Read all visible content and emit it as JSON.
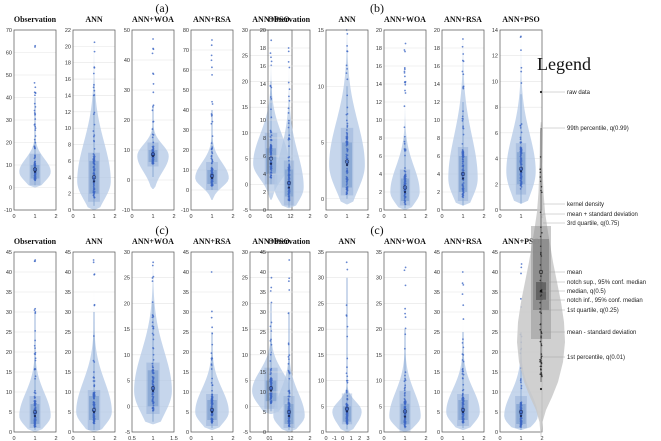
{
  "chart_data": {
    "type": "violin",
    "groups": [
      {
        "label": "(a)",
        "panels": [
          {
            "title": "Observation",
            "ylim": [
              -10,
              70
            ],
            "yticks": [
              -10,
              0,
              10,
              20,
              30,
              40,
              50,
              60,
              70
            ],
            "xticks": [
              "0",
              "1",
              "2"
            ],
            "xlim": [
              0,
              2
            ],
            "median": 7,
            "q1": 4,
            "q3": 10,
            "mean": 8,
            "sd": 7,
            "p1": 1,
            "p99": 40,
            "max": 63,
            "min": 0,
            "width": 0.75
          },
          {
            "title": "ANN",
            "ylim": [
              0,
              22
            ],
            "yticks": [
              0,
              2,
              4,
              6,
              8,
              10,
              12,
              14,
              16,
              18,
              20,
              22
            ],
            "xticks": [
              "0",
              "1",
              "2"
            ],
            "xlim": [
              0,
              2
            ],
            "median": 3.5,
            "q1": 2,
            "q3": 6,
            "mean": 4,
            "sd": 3,
            "p1": 0.5,
            "p99": 14,
            "max": 20.5,
            "min": 0,
            "width": 0.8
          },
          {
            "title": "ANN+WOA",
            "ylim": [
              -10,
              50
            ],
            "yticks": [
              -10,
              0,
              10,
              20,
              30,
              40,
              50
            ],
            "xticks": [
              "0",
              "1",
              "2"
            ],
            "xlim": [
              0,
              2
            ],
            "median": 8,
            "q1": 6,
            "q3": 10,
            "mean": 8.5,
            "sd": 4,
            "p1": 1,
            "p99": 25,
            "max": 47,
            "min": -3,
            "width": 0.75
          },
          {
            "title": "ANN+RSA",
            "ylim": [
              -10,
              80
            ],
            "yticks": [
              -10,
              0,
              10,
              20,
              30,
              40,
              50,
              60,
              70,
              80
            ],
            "xticks": [
              "0",
              "1",
              "2"
            ],
            "xlim": [
              0,
              2
            ],
            "median": 6,
            "q1": 3,
            "q3": 10,
            "mean": 7,
            "sd": 7,
            "p1": 0,
            "p99": 40,
            "max": 75,
            "min": -5,
            "width": 0.8
          },
          {
            "title": "ANN+PSO",
            "ylim": [
              -5,
              30
            ],
            "yticks": [
              -5,
              0,
              5,
              10,
              15,
              20,
              25,
              30
            ],
            "xticks": [
              "0",
              "1",
              "2"
            ],
            "xlim": [
              0,
              2
            ],
            "median": 4,
            "q1": 2,
            "q3": 7,
            "mean": 5,
            "sd": 5,
            "p1": 0,
            "p99": 20,
            "max": 28,
            "min": -3,
            "width": 0.85
          }
        ]
      },
      {
        "label": "(b)",
        "panels": [
          {
            "title": "Observation",
            "ylim": [
              0,
              20
            ],
            "yticks": [
              0,
              2,
              4,
              6,
              8,
              10,
              12,
              14,
              16,
              18,
              20
            ],
            "xticks": [
              "0",
              "1",
              "2"
            ],
            "xlim": [
              0,
              2
            ],
            "median": 2.5,
            "q1": 1.5,
            "q3": 4.5,
            "mean": 3,
            "sd": 2.5,
            "p1": 0.3,
            "p99": 10,
            "max": 18,
            "min": 0.2,
            "width": 0.7
          },
          {
            "title": "ANN",
            "ylim": [
              -1,
              15
            ],
            "yticks": [
              0,
              5,
              10,
              15
            ],
            "xticks": [
              "0",
              "1",
              "2"
            ],
            "xlim": [
              0,
              2
            ],
            "median": 3,
            "q1": 1,
            "q3": 5,
            "mean": 3.3,
            "sd": 3,
            "p1": 0,
            "p99": 10,
            "max": 15,
            "min": -0.5,
            "width": 0.85
          },
          {
            "title": "ANN+WOA",
            "ylim": [
              0,
              20
            ],
            "yticks": [
              0,
              2,
              4,
              6,
              8,
              10,
              12,
              14,
              16,
              18,
              20
            ],
            "xticks": [
              "0",
              "1",
              "2"
            ],
            "xlim": [
              0,
              2
            ],
            "median": 2,
            "q1": 1,
            "q3": 3.5,
            "mean": 2.5,
            "sd": 2,
            "p1": 0.2,
            "p99": 8,
            "max": 18.5,
            "min": 0,
            "width": 0.7
          },
          {
            "title": "ANN+RSA",
            "ylim": [
              0,
              20
            ],
            "yticks": [
              0,
              2,
              4,
              6,
              8,
              10,
              12,
              14,
              16,
              18,
              20
            ],
            "xticks": [
              "0",
              "1",
              "2"
            ],
            "xlim": [
              0,
              2
            ],
            "median": 3.5,
            "q1": 2,
            "q3": 6,
            "mean": 4,
            "sd": 3,
            "p1": 0.5,
            "p99": 12,
            "max": 19,
            "min": 0.5,
            "width": 0.7
          },
          {
            "title": "ANN+PSO",
            "ylim": [
              0,
              14
            ],
            "yticks": [
              0,
              2,
              4,
              6,
              8,
              10,
              12,
              14
            ],
            "xticks": [
              "0",
              "1",
              "2"
            ],
            "xlim": [
              0,
              2
            ],
            "median": 3,
            "q1": 2,
            "q3": 4.5,
            "mean": 3.2,
            "sd": 2,
            "p1": 0.5,
            "p99": 9,
            "max": 13.5,
            "min": 0.5,
            "width": 0.7
          }
        ]
      },
      {
        "label": "(c)",
        "panels": [
          {
            "title": "Observation",
            "ylim": [
              0,
              45
            ],
            "yticks": [
              0,
              5,
              10,
              15,
              20,
              25,
              30,
              35,
              40,
              45
            ],
            "xticks": [
              "0",
              "1",
              "2"
            ],
            "xlim": [
              0,
              2
            ],
            "median": 4,
            "q1": 2,
            "q3": 7,
            "mean": 5,
            "sd": 4,
            "p1": 0.5,
            "p99": 30,
            "max": 43,
            "min": 0,
            "width": 0.75
          },
          {
            "title": "ANN",
            "ylim": [
              0,
              45
            ],
            "yticks": [
              0,
              5,
              10,
              15,
              20,
              25,
              30,
              35,
              40,
              45
            ],
            "xticks": [
              "0",
              "1",
              "2"
            ],
            "xlim": [
              0,
              2
            ],
            "median": 5,
            "q1": 3,
            "q3": 9,
            "mean": 5.5,
            "sd": 5,
            "p1": 0.5,
            "p99": 30,
            "max": 43,
            "min": 0,
            "width": 0.85
          },
          {
            "title": "ANN+WOA",
            "ylim": [
              -5,
              30
            ],
            "yticks": [
              -5,
              0,
              5,
              10,
              15,
              20,
              25,
              30
            ],
            "xticks": [
              "0.5",
              "1",
              "1.5"
            ],
            "xlim": [
              0.5,
              1.5
            ],
            "median": 3,
            "q1": 0,
            "q3": 7,
            "mean": 3.5,
            "sd": 5,
            "p1": -3,
            "p99": 20,
            "max": 28,
            "min": -3.5,
            "width": 0.9
          },
          {
            "title": "ANN+RSA",
            "ylim": [
              0,
              45
            ],
            "yticks": [
              0,
              5,
              10,
              15,
              20,
              25,
              30,
              35,
              40,
              45
            ],
            "xticks": [
              "0",
              "1",
              "2"
            ],
            "xlim": [
              0,
              2
            ],
            "median": 5,
            "q1": 3,
            "q3": 8,
            "mean": 5.5,
            "sd": 4,
            "p1": 1,
            "p99": 25,
            "max": 40,
            "min": 0.5,
            "width": 0.8
          },
          {
            "title": "ANN+PSO",
            "ylim": [
              -5,
              30
            ],
            "yticks": [
              -5,
              0,
              5,
              10,
              15,
              20,
              25,
              30
            ],
            "xticks": [
              "0",
              "1",
              "2"
            ],
            "xlim": [
              0,
              2
            ],
            "median": 3,
            "q1": 1,
            "q3": 5,
            "mean": 3.5,
            "sd": 4,
            "p1": -1,
            "p99": 20,
            "max": 25,
            "min": -1.5,
            "width": 0.9
          }
        ]
      },
      {
        "label": "(c)",
        "panels": [
          {
            "title": "Observation",
            "ylim": [
              0,
              45
            ],
            "yticks": [
              0,
              5,
              10,
              15,
              20,
              25,
              30,
              35,
              40,
              45
            ],
            "xticks": [
              "0",
              "1",
              "2"
            ],
            "xlim": [
              0,
              2
            ],
            "median": 4,
            "q1": 2,
            "q3": 7,
            "mean": 5,
            "sd": 4,
            "p1": 0.5,
            "p99": 30,
            "max": 43,
            "min": 0,
            "width": 0.75
          },
          {
            "title": "ANN",
            "ylim": [
              0,
              35
            ],
            "yticks": [
              0,
              5,
              10,
              15,
              20,
              25,
              30,
              35
            ],
            "xticks": [
              "0",
              "-1",
              "0",
              "1",
              "2",
              "3"
            ],
            "xlim": [
              -1,
              3
            ],
            "median": 4,
            "q1": 2,
            "q3": 5,
            "mean": 4.5,
            "sd": 3,
            "p1": 0.5,
            "p99": 30,
            "max": 33,
            "min": 0,
            "width": 0.7
          },
          {
            "title": "ANN+WOA",
            "ylim": [
              0,
              35
            ],
            "yticks": [
              0,
              5,
              10,
              15,
              20,
              25,
              30,
              35
            ],
            "xticks": [
              "0",
              "1",
              "2"
            ],
            "xlim": [
              0,
              2
            ],
            "median": 3,
            "q1": 1.5,
            "q3": 5.5,
            "mean": 4,
            "sd": 4,
            "p1": 0.5,
            "p99": 20,
            "max": 32,
            "min": 0,
            "width": 0.75
          },
          {
            "title": "ANN+RSA",
            "ylim": [
              0,
              45
            ],
            "yticks": [
              0,
              5,
              10,
              15,
              20,
              25,
              30,
              35,
              40,
              45
            ],
            "xticks": [
              "0",
              "1",
              "2"
            ],
            "xlim": [
              0,
              2
            ],
            "median": 5,
            "q1": 3,
            "q3": 8,
            "mean": 5.5,
            "sd": 4,
            "p1": 1,
            "p99": 25,
            "max": 40,
            "min": 0.5,
            "width": 0.8
          },
          {
            "title": "ANN+PSO",
            "ylim": [
              0,
              45
            ],
            "yticks": [
              0,
              5,
              10,
              15,
              20,
              25,
              30,
              35,
              40,
              45
            ],
            "xticks": [
              "0",
              "1",
              "2"
            ],
            "xlim": [
              0,
              2
            ],
            "median": 4,
            "q1": 2,
            "q3": 7,
            "mean": 5,
            "sd": 4,
            "p1": 0.5,
            "p99": 25,
            "max": 42,
            "min": 0.5,
            "width": 0.8
          }
        ]
      }
    ],
    "legend": {
      "title": "Legend",
      "items": [
        {
          "key": "raw",
          "text": "raw data"
        },
        {
          "key": "p99",
          "text": "99th percentile, q(0.99)"
        },
        {
          "key": "kde",
          "text": "kernel density"
        },
        {
          "key": "meanplus",
          "text": "mean + standard deviation"
        },
        {
          "key": "q3",
          "text": "3rd quartile, q(0.75)"
        },
        {
          "key": "mean",
          "text": "mean"
        },
        {
          "key": "notchsup",
          "text": "notch sup., 95% conf. median"
        },
        {
          "key": "median",
          "text": "median, q(0.5)"
        },
        {
          "key": "notchinf",
          "text": "notch inf., 95% conf. median"
        },
        {
          "key": "q1",
          "text": "1st quartile, q(0.25)"
        },
        {
          "key": "meanminus",
          "text": "mean - standard deviation"
        },
        {
          "key": "p1",
          "text": "1st percentile, q(0.01)"
        }
      ]
    },
    "colors": {
      "violin": "#b3c8e6",
      "box": "#7d9fd0",
      "dot": "#3f68c4",
      "axis": "#555555",
      "grid": "#e5e5e5",
      "legend_violin": "#c8c8c8",
      "legend_box": "#8a8a8a",
      "legend_notch": "#5a5a5a"
    }
  }
}
